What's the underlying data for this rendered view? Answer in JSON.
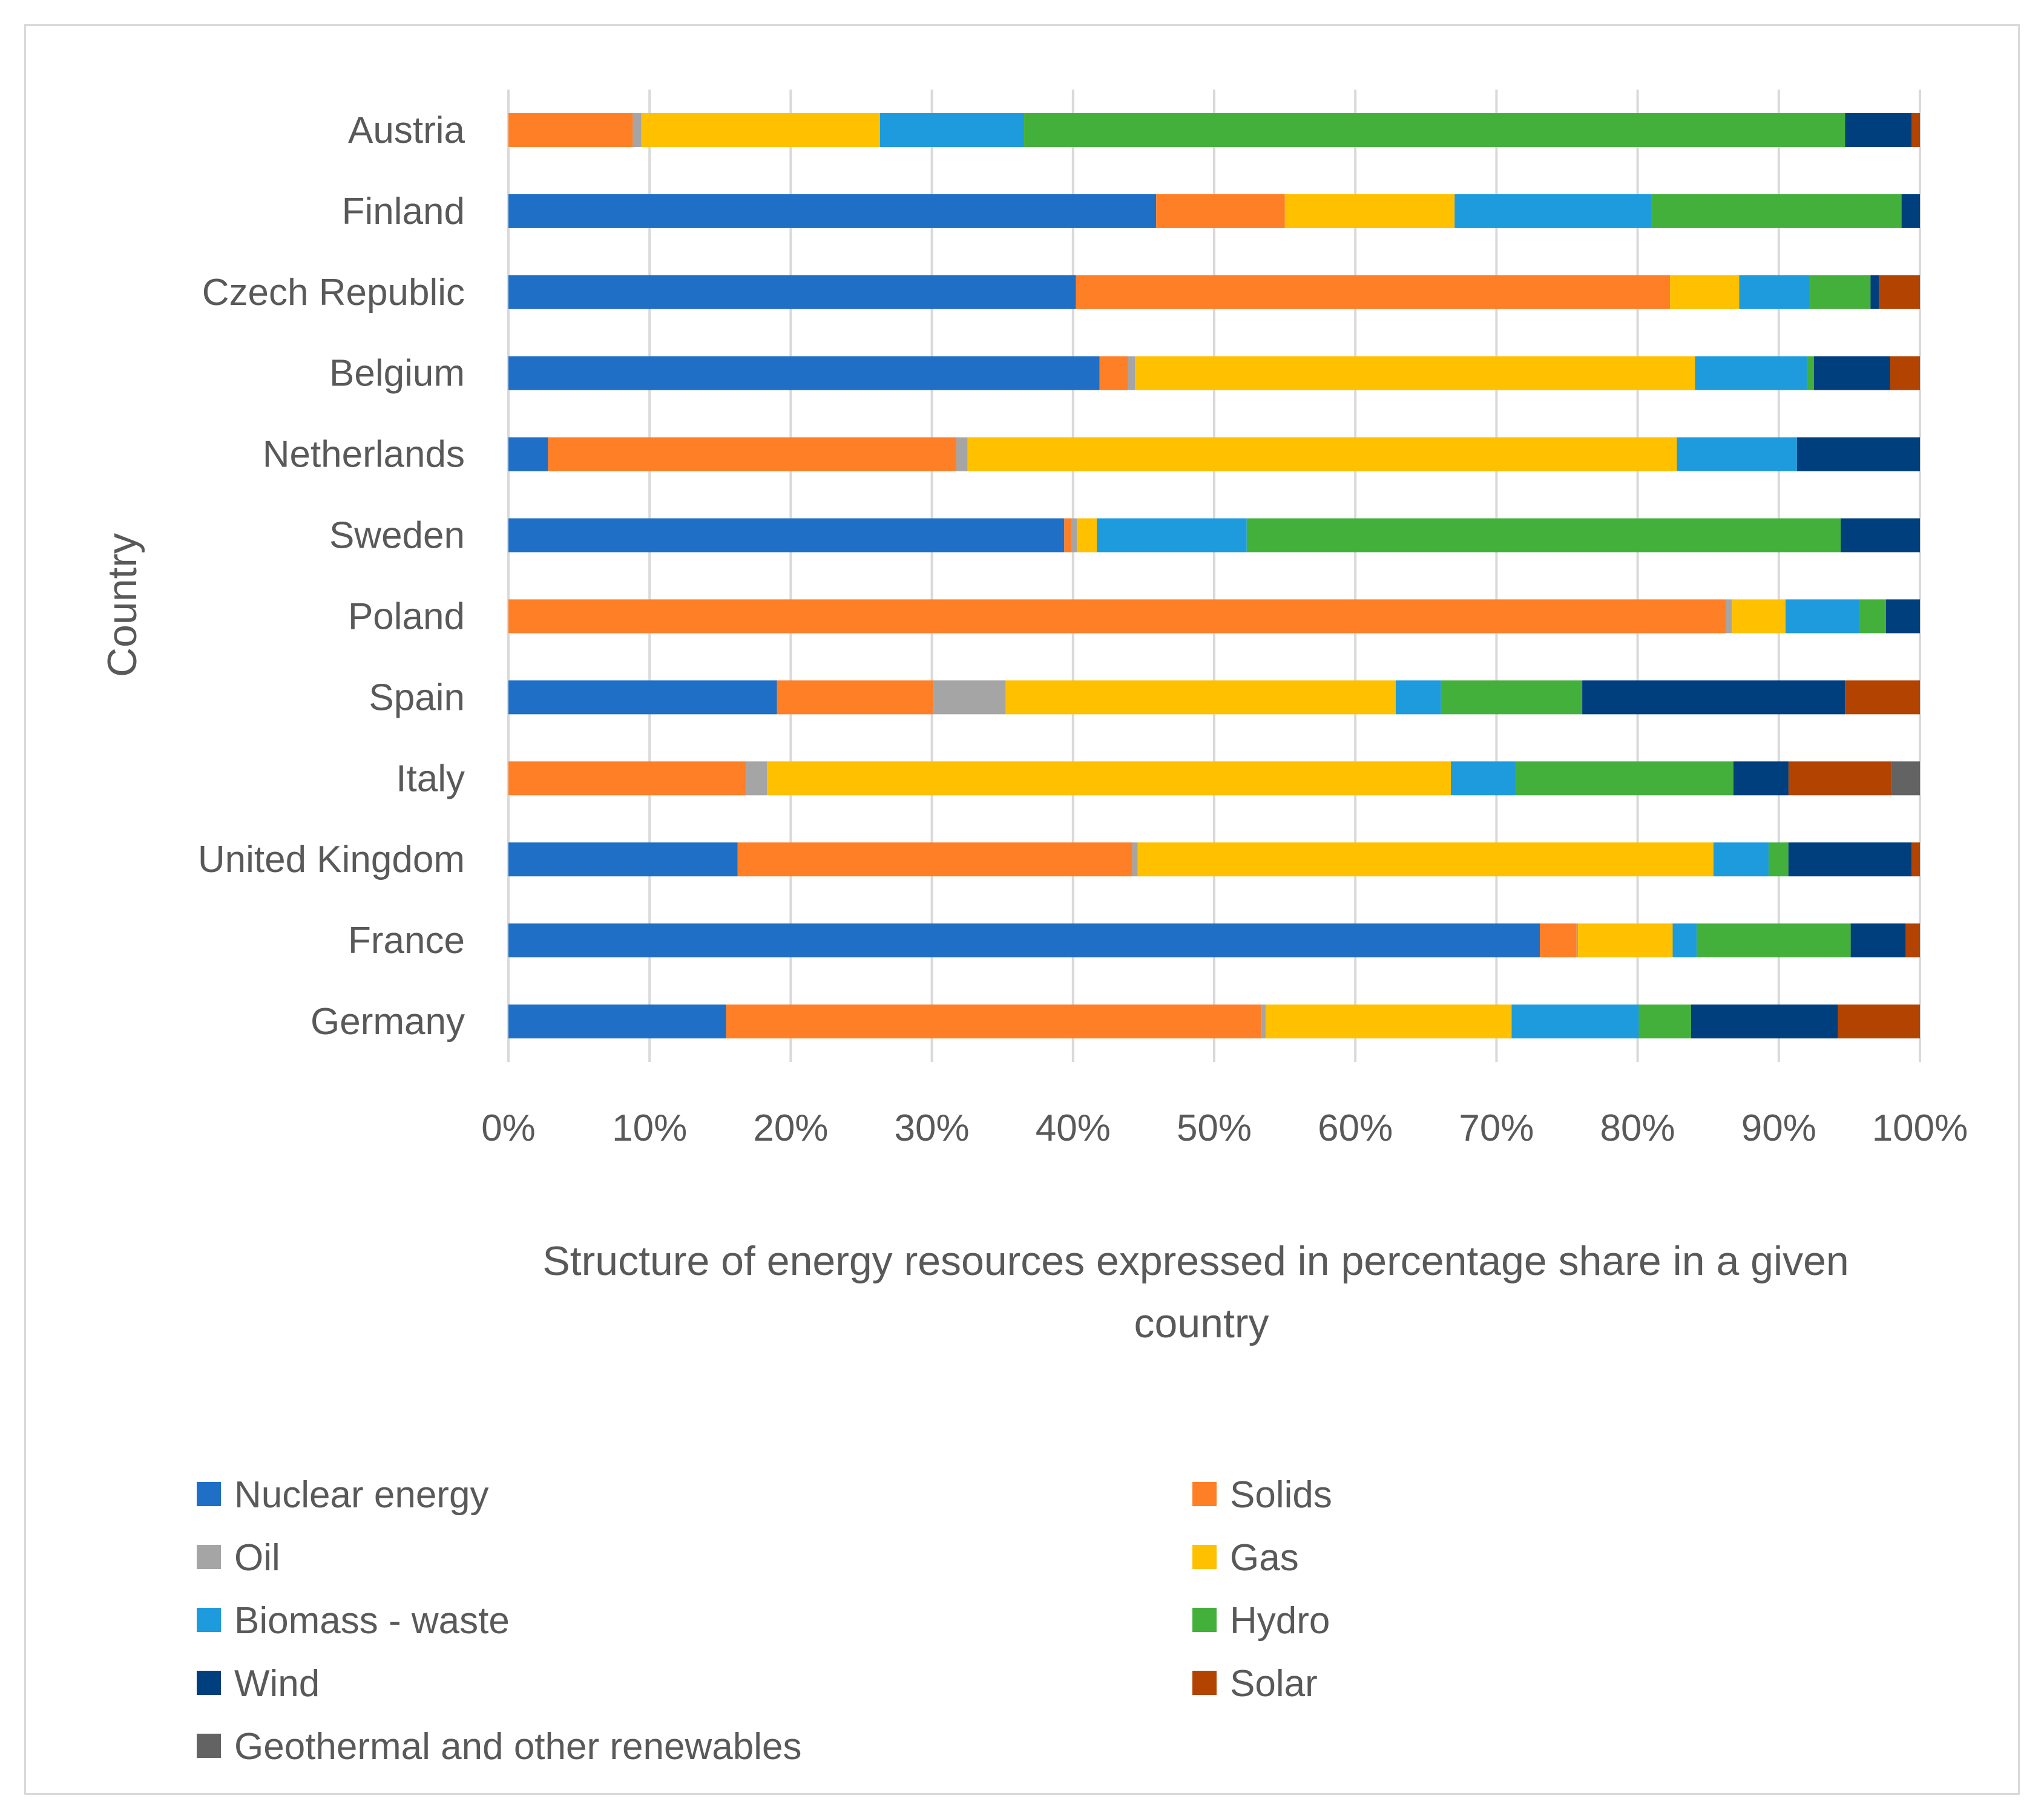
{
  "chart_data": {
    "type": "bar",
    "orientation": "horizontal",
    "stacked": "percent",
    "xlabel": "Structure of energy resources expressed in percentage share in a given country",
    "ylabel": "Country",
    "xlim": [
      0,
      100
    ],
    "x_ticks": [
      "0%",
      "10%",
      "20%",
      "30%",
      "40%",
      "50%",
      "60%",
      "70%",
      "80%",
      "90%",
      "100%"
    ],
    "grid": "vertical",
    "legend_position": "bottom",
    "categories": [
      "Austria",
      "Finland",
      "Czech Republic",
      "Belgium",
      "Netherlands",
      "Sweden",
      "Poland",
      "Spain",
      "Italy",
      "United Kingdom",
      "France",
      "Germany"
    ],
    "series": [
      {
        "name": "Nuclear energy",
        "color": "#1f6fc6",
        "values": [
          0,
          45.8,
          40.2,
          41.8,
          2.8,
          39.3,
          0,
          19.0,
          0,
          16.2,
          73.0,
          15.4
        ]
      },
      {
        "name": "Solids",
        "color": "#ff7f27",
        "values": [
          8.8,
          9.1,
          42.1,
          2.0,
          28.9,
          0.5,
          86.1,
          11.1,
          16.8,
          27.9,
          2.6,
          37.9
        ]
      },
      {
        "name": "Oil",
        "color": "#a5a5a5",
        "values": [
          0.6,
          0,
          0,
          0.5,
          0.8,
          0.4,
          0.4,
          5.1,
          1.5,
          0.4,
          0.1,
          0.3
        ]
      },
      {
        "name": "Gas",
        "color": "#ffc000",
        "values": [
          16.9,
          12.0,
          4.9,
          39.6,
          50.2,
          1.4,
          3.8,
          27.6,
          48.4,
          40.7,
          6.7,
          17.4
        ]
      },
      {
        "name": "Biomass - waste",
        "color": "#1e9bdc",
        "values": [
          10.2,
          13.9,
          5.0,
          7.9,
          8.5,
          10.6,
          5.2,
          3.2,
          4.6,
          3.9,
          1.7,
          9.0
        ]
      },
      {
        "name": "Hydro",
        "color": "#44b03c",
        "values": [
          58.1,
          17.7,
          4.3,
          0.5,
          0,
          42.0,
          1.9,
          10.0,
          15.4,
          1.4,
          10.9,
          3.7
        ]
      },
      {
        "name": "Wind",
        "color": "#003f7d",
        "values": [
          4.7,
          1.3,
          0.6,
          5.4,
          8.7,
          5.6,
          2.4,
          18.6,
          3.9,
          8.7,
          3.9,
          10.4
        ]
      },
      {
        "name": "Solar",
        "color": "#b34300",
        "values": [
          0.6,
          0,
          2.9,
          2.1,
          0,
          0,
          0,
          5.3,
          7.3,
          0.6,
          1.0,
          5.8
        ]
      },
      {
        "name": "Geothermal and other renewables",
        "color": "#636363",
        "values": [
          0,
          0,
          0,
          0,
          0,
          0,
          0,
          0,
          2.0,
          0,
          0,
          0
        ]
      }
    ]
  }
}
